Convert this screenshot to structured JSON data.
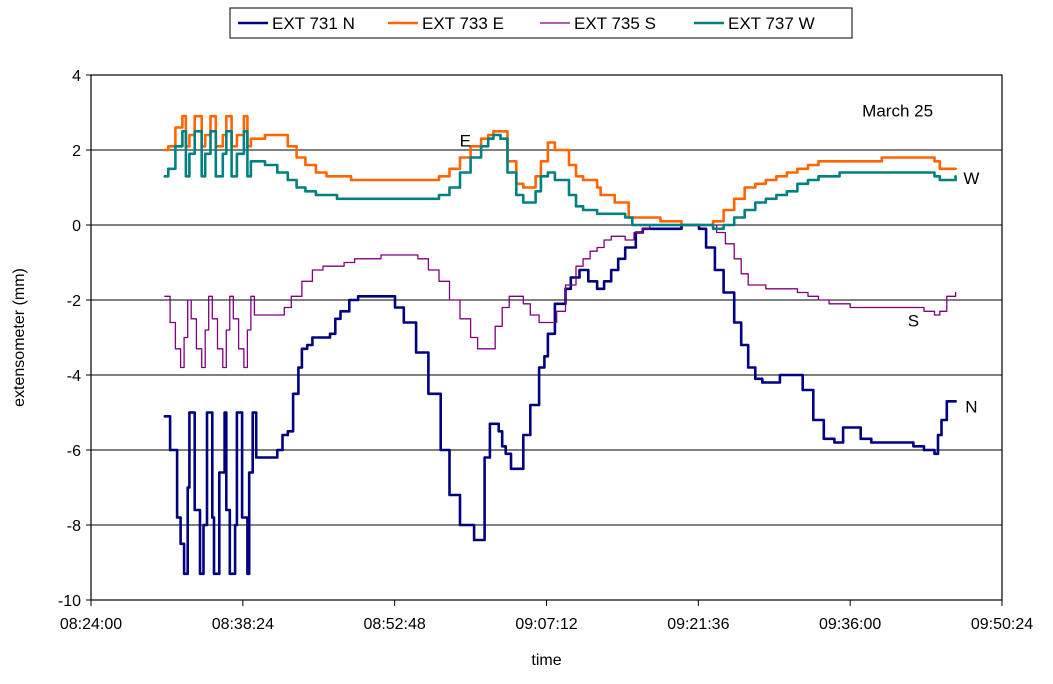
{
  "chart_data": {
    "type": "line",
    "xlabel": "time",
    "ylabel": "extensometer (mm)",
    "xlim": [
      "08:24:00",
      "09:50:24"
    ],
    "ylim": [
      -10,
      4
    ],
    "x_ticks": [
      "08:24:00",
      "08:38:24",
      "08:52:48",
      "09:07:12",
      "09:21:36",
      "09:36:00",
      "09:50:24"
    ],
    "y_ticks": [
      -10,
      -8,
      -6,
      -4,
      -2,
      0,
      2,
      4
    ],
    "y_tick_labels": [
      "-10",
      "-8",
      "-6",
      "-4",
      "-2",
      "0",
      "2",
      "4"
    ],
    "grid": "horizontal",
    "legend_position": "top",
    "annotations": [
      {
        "text": "March 25",
        "x": "09:40:30",
        "y": 2.9
      },
      {
        "text": "E",
        "x": "08:59:30",
        "y": 2.1
      },
      {
        "text": "W",
        "x": "09:47:30",
        "y": 1.1
      },
      {
        "text": "S",
        "x": "09:42:00",
        "y": -2.7
      },
      {
        "text": "N",
        "x": "09:47:30",
        "y": -5.0
      }
    ],
    "series": [
      {
        "name": "EXT 731 N",
        "color": "#000080",
        "width": 2.6,
        "x": [
          "08:31:00",
          "08:31:30",
          "08:32:10",
          "08:32:30",
          "08:32:50",
          "08:33:10",
          "08:33:20",
          "08:33:50",
          "08:34:20",
          "08:34:40",
          "08:35:00",
          "08:35:30",
          "08:35:40",
          "08:36:10",
          "08:36:40",
          "08:36:50",
          "08:37:10",
          "08:37:40",
          "08:37:50",
          "08:38:20",
          "08:38:50",
          "08:39:00",
          "08:39:20",
          "08:39:40",
          "08:41:40",
          "08:42:10",
          "08:42:40",
          "08:43:10",
          "08:43:40",
          "08:44:00",
          "08:44:30",
          "08:45:00",
          "08:45:40",
          "08:46:40",
          "08:47:10",
          "08:47:40",
          "08:48:30",
          "08:49:20",
          "08:50:40",
          "08:51:30",
          "08:52:50",
          "08:53:40",
          "08:54:50",
          "08:56:00",
          "08:57:10",
          "08:58:00",
          "08:59:00",
          "09:00:20",
          "09:01:20",
          "09:01:50",
          "09:02:20",
          "09:02:40",
          "09:03:00",
          "09:03:20",
          "09:03:50",
          "09:04:20",
          "09:05:00",
          "09:05:40",
          "09:06:30",
          "09:07:00",
          "09:07:20",
          "09:08:00",
          "09:09:00",
          "09:09:30",
          "09:10:20",
          "09:11:10",
          "09:12:00",
          "09:12:40",
          "09:13:20",
          "09:14:00",
          "09:14:40",
          "09:15:40",
          "09:16:20",
          "09:17:00",
          "09:18:20",
          "09:20:00",
          "09:21:00",
          "09:21:40",
          "09:22:20",
          "09:23:10",
          "09:24:00",
          "09:25:00",
          "09:25:40",
          "09:26:20",
          "09:27:00",
          "09:27:40",
          "09:28:20",
          "09:29:20",
          "09:30:20",
          "09:30:50",
          "09:31:30",
          "09:32:30",
          "09:33:30",
          "09:34:30",
          "09:35:20",
          "09:35:40",
          "09:36:10",
          "09:37:00",
          "09:38:00",
          "09:39:00",
          "09:40:30",
          "09:42:00",
          "09:43:00",
          "09:44:00",
          "09:44:20",
          "09:44:40",
          "09:45:10",
          "09:46:00"
        ],
        "values": [
          -5.1,
          -6.0,
          -7.8,
          -8.5,
          -9.3,
          -7.0,
          -5.0,
          -7.6,
          -9.3,
          -8.0,
          -5.0,
          -7.8,
          -9.3,
          -6.6,
          -5.0,
          -7.6,
          -9.3,
          -8.0,
          -5.0,
          -7.8,
          -9.3,
          -6.6,
          -5.0,
          -6.2,
          -6.0,
          -5.6,
          -5.5,
          -4.5,
          -3.8,
          -3.3,
          -3.2,
          -3.0,
          -3.0,
          -2.9,
          -2.5,
          -2.3,
          -2.0,
          -1.9,
          -1.9,
          -1.9,
          -2.2,
          -2.6,
          -3.4,
          -4.5,
          -6.0,
          -7.2,
          -8.0,
          -8.4,
          -6.2,
          -5.3,
          -5.3,
          -5.5,
          -5.9,
          -6.1,
          -6.5,
          -6.5,
          -5.6,
          -4.8,
          -3.8,
          -3.5,
          -2.9,
          -2.1,
          -1.7,
          -1.4,
          -1.2,
          -1.5,
          -1.7,
          -1.5,
          -1.2,
          -0.9,
          -0.6,
          -0.2,
          -0.1,
          -0.1,
          -0.1,
          0.0,
          0.0,
          -0.1,
          -0.6,
          -1.2,
          -1.8,
          -2.6,
          -3.2,
          -3.8,
          -4.1,
          -4.2,
          -4.2,
          -4.0,
          -4.0,
          -4.0,
          -4.4,
          -5.2,
          -5.7,
          -5.8,
          -5.4,
          -5.4,
          -5.4,
          -5.7,
          -5.8,
          -5.8,
          -5.8,
          -5.9,
          -6.0,
          -6.1,
          -5.6,
          -5.2,
          -4.7,
          -4.7
        ]
      },
      {
        "name": "EXT 733 E",
        "color": "#ff6600",
        "width": 2.6,
        "x": [
          "08:31:00",
          "08:31:20",
          "08:32:00",
          "08:32:40",
          "08:33:00",
          "08:33:20",
          "08:33:50",
          "08:34:30",
          "08:34:50",
          "08:35:20",
          "08:35:50",
          "08:36:30",
          "08:36:50",
          "08:37:20",
          "08:37:50",
          "08:38:30",
          "08:38:50",
          "08:39:10",
          "08:39:40",
          "08:40:30",
          "08:41:30",
          "08:42:40",
          "08:43:30",
          "08:44:20",
          "08:45:20",
          "08:46:20",
          "08:47:20",
          "08:48:40",
          "08:50:00",
          "08:51:30",
          "08:53:00",
          "08:54:00",
          "08:55:00",
          "08:56:00",
          "08:57:00",
          "08:58:00",
          "08:59:00",
          "09:00:00",
          "09:01:00",
          "09:01:40",
          "09:02:10",
          "09:02:50",
          "09:03:30",
          "09:04:20",
          "09:05:00",
          "09:05:30",
          "09:06:10",
          "09:06:40",
          "09:07:20",
          "09:08:00",
          "09:09:20",
          "09:10:00",
          "09:10:40",
          "09:11:10",
          "09:12:00",
          "09:12:20",
          "09:13:00",
          "09:13:40",
          "09:14:20",
          "09:15:00",
          "09:16:00",
          "09:18:00",
          "09:20:00",
          "09:21:40",
          "09:23:00",
          "09:24:00",
          "09:25:00",
          "09:26:00",
          "09:27:00",
          "09:28:00",
          "09:29:00",
          "09:30:00",
          "09:31:00",
          "09:32:00",
          "09:33:00",
          "09:35:00",
          "09:37:00",
          "09:39:00",
          "09:41:00",
          "09:42:30",
          "09:43:30",
          "09:44:00",
          "09:44:30",
          "09:45:30",
          "09:46:00"
        ],
        "values": [
          2.0,
          2.1,
          2.6,
          2.9,
          2.1,
          2.4,
          2.9,
          2.1,
          2.4,
          2.9,
          2.1,
          2.4,
          2.9,
          2.1,
          2.4,
          2.9,
          2.1,
          2.3,
          2.3,
          2.4,
          2.4,
          2.1,
          1.8,
          1.6,
          1.4,
          1.3,
          1.3,
          1.2,
          1.2,
          1.2,
          1.2,
          1.2,
          1.2,
          1.2,
          1.3,
          1.5,
          1.8,
          2.1,
          2.3,
          2.4,
          2.5,
          2.5,
          1.7,
          1.1,
          1.0,
          1.0,
          1.3,
          1.7,
          2.2,
          2.0,
          1.6,
          1.3,
          1.2,
          1.2,
          1.0,
          0.8,
          0.8,
          0.6,
          0.6,
          0.2,
          0.2,
          0.1,
          0.0,
          0.0,
          0.1,
          0.4,
          0.7,
          1.0,
          1.1,
          1.2,
          1.3,
          1.4,
          1.5,
          1.6,
          1.7,
          1.7,
          1.7,
          1.8,
          1.8,
          1.8,
          1.8,
          1.7,
          1.5,
          1.5,
          1.5
        ]
      },
      {
        "name": "EXT 735 S",
        "color": "#800080",
        "width": 1.3,
        "x": [
          "08:31:00",
          "08:31:30",
          "08:32:00",
          "08:32:30",
          "08:32:50",
          "08:33:10",
          "08:33:30",
          "08:34:00",
          "08:34:30",
          "08:34:50",
          "08:35:10",
          "08:35:30",
          "08:36:00",
          "08:36:30",
          "08:36:50",
          "08:37:10",
          "08:37:30",
          "08:38:00",
          "08:38:30",
          "08:38:50",
          "08:39:10",
          "08:39:30",
          "08:40:00",
          "08:41:30",
          "08:42:20",
          "08:43:00",
          "08:44:00",
          "08:45:00",
          "08:46:00",
          "08:47:00",
          "08:48:00",
          "08:49:00",
          "08:50:00",
          "08:51:30",
          "08:53:00",
          "08:54:00",
          "08:55:00",
          "08:56:00",
          "08:57:00",
          "08:58:00",
          "08:59:00",
          "09:00:00",
          "09:00:40",
          "09:01:30",
          "09:02:20",
          "09:03:00",
          "09:03:40",
          "09:04:20",
          "09:05:00",
          "09:05:40",
          "09:06:30",
          "09:07:20",
          "09:08:10",
          "09:09:00",
          "09:10:00",
          "09:10:40",
          "09:11:20",
          "09:12:00",
          "09:12:40",
          "09:13:20",
          "09:14:00",
          "09:14:40",
          "09:15:30",
          "09:16:20",
          "09:17:00",
          "09:18:00",
          "09:19:00",
          "09:20:00",
          "09:21:00",
          "09:21:40",
          "09:22:30",
          "09:23:20",
          "09:24:10",
          "09:25:00",
          "09:25:40",
          "09:26:20",
          "09:27:10",
          "09:28:00",
          "09:29:00",
          "09:30:00",
          "09:31:00",
          "09:32:00",
          "09:33:00",
          "09:34:00",
          "09:35:00",
          "09:36:00",
          "09:38:00",
          "09:40:00",
          "09:42:00",
          "09:43:00",
          "09:44:00",
          "09:44:30",
          "09:45:10",
          "09:46:00"
        ],
        "values": [
          -1.9,
          -2.6,
          -3.3,
          -3.8,
          -3.0,
          -2.0,
          -2.5,
          -3.3,
          -3.8,
          -2.8,
          -1.9,
          -2.5,
          -3.3,
          -3.8,
          -2.8,
          -1.9,
          -2.5,
          -3.3,
          -3.8,
          -2.8,
          -1.9,
          -2.4,
          -2.4,
          -2.4,
          -2.2,
          -1.9,
          -1.5,
          -1.2,
          -1.1,
          -1.1,
          -1.0,
          -0.9,
          -0.9,
          -0.8,
          -0.8,
          -0.8,
          -0.9,
          -1.2,
          -1.5,
          -2.0,
          -2.5,
          -3.0,
          -3.3,
          -3.3,
          -2.7,
          -2.2,
          -1.9,
          -1.9,
          -2.1,
          -2.4,
          -2.6,
          -2.6,
          -2.3,
          -1.6,
          -1.1,
          -0.9,
          -0.7,
          -0.6,
          -0.4,
          -0.3,
          -0.3,
          -0.4,
          -0.2,
          -0.1,
          0.0,
          0.0,
          0.0,
          0.0,
          0.0,
          0.0,
          0.0,
          -0.2,
          -0.5,
          -0.9,
          -1.3,
          -1.6,
          -1.6,
          -1.7,
          -1.7,
          -1.7,
          -1.8,
          -1.9,
          -2.0,
          -2.1,
          -2.1,
          -2.2,
          -2.2,
          -2.2,
          -2.2,
          -2.3,
          -2.4,
          -2.3,
          -1.9,
          -1.8
        ]
      },
      {
        "name": "EXT 737 W",
        "color": "#008080",
        "width": 2.6,
        "x": [
          "08:31:00",
          "08:31:20",
          "08:32:00",
          "08:32:40",
          "08:33:00",
          "08:33:20",
          "08:33:50",
          "08:34:30",
          "08:34:50",
          "08:35:20",
          "08:35:50",
          "08:36:30",
          "08:36:50",
          "08:37:20",
          "08:37:50",
          "08:38:30",
          "08:38:50",
          "08:39:10",
          "08:39:40",
          "08:40:30",
          "08:41:40",
          "08:42:40",
          "08:43:30",
          "08:44:20",
          "08:45:20",
          "08:46:20",
          "08:47:20",
          "08:48:40",
          "08:50:00",
          "08:51:30",
          "08:53:00",
          "08:54:00",
          "08:55:00",
          "08:56:00",
          "08:57:00",
          "08:58:00",
          "08:59:00",
          "09:00:00",
          "09:01:00",
          "09:01:40",
          "09:02:10",
          "09:02:50",
          "09:03:30",
          "09:04:20",
          "09:05:00",
          "09:05:30",
          "09:06:10",
          "09:06:40",
          "09:07:20",
          "09:08:00",
          "09:09:20",
          "09:10:00",
          "09:10:40",
          "09:11:20",
          "09:12:00",
          "09:13:00",
          "09:14:00",
          "09:14:40",
          "09:15:20",
          "09:16:20",
          "09:18:00",
          "09:20:00",
          "09:21:40",
          "09:23:00",
          "09:24:00",
          "09:25:00",
          "09:26:00",
          "09:27:00",
          "09:28:00",
          "09:29:00",
          "09:30:00",
          "09:31:00",
          "09:32:00",
          "09:33:00",
          "09:35:00",
          "09:37:00",
          "09:39:00",
          "09:41:00",
          "09:43:00",
          "09:44:00",
          "09:44:30",
          "09:45:30",
          "09:46:00"
        ],
        "values": [
          1.3,
          1.5,
          2.1,
          2.5,
          1.3,
          1.9,
          2.5,
          1.3,
          1.9,
          2.5,
          1.3,
          1.9,
          2.5,
          1.3,
          1.9,
          2.5,
          1.3,
          1.7,
          1.7,
          1.6,
          1.4,
          1.2,
          1.0,
          0.9,
          0.8,
          0.8,
          0.7,
          0.7,
          0.7,
          0.7,
          0.7,
          0.7,
          0.7,
          0.7,
          0.8,
          1.0,
          1.4,
          1.8,
          2.1,
          2.3,
          2.4,
          2.3,
          1.4,
          0.8,
          0.6,
          0.6,
          0.9,
          1.3,
          1.4,
          1.2,
          0.8,
          0.5,
          0.4,
          0.4,
          0.3,
          0.3,
          0.3,
          0.2,
          0.0,
          0.0,
          0.0,
          0.0,
          0.0,
          -0.1,
          0.0,
          0.2,
          0.4,
          0.6,
          0.7,
          0.8,
          0.9,
          1.1,
          1.2,
          1.3,
          1.4,
          1.4,
          1.4,
          1.4,
          1.4,
          1.3,
          1.2,
          1.2,
          1.3
        ]
      }
    ]
  }
}
